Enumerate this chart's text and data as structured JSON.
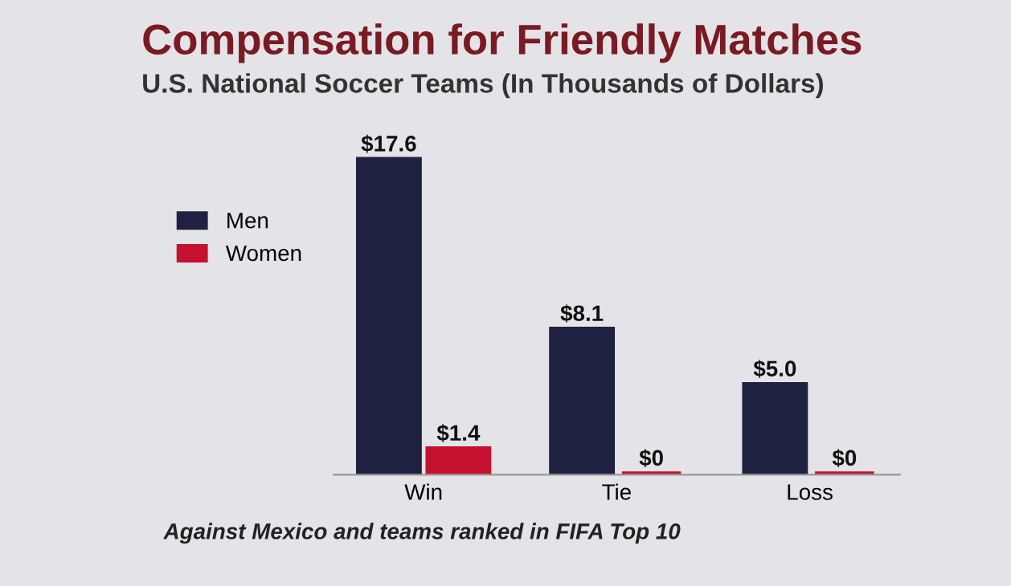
{
  "chart_data": {
    "type": "bar",
    "title": "Compensation for Friendly Matches",
    "subtitle": "U.S. National Soccer Teams (In Thousands of Dollars)",
    "categories": [
      "Win",
      "Tie",
      "Loss"
    ],
    "series": [
      {
        "name": "Men",
        "color": "#1e2140",
        "values": [
          17.6,
          8.1,
          5.0
        ],
        "value_labels": [
          "$17.6",
          "$8.1",
          "$5.0"
        ]
      },
      {
        "name": "Women",
        "color": "#c41230",
        "values": [
          1.4,
          0,
          0
        ],
        "value_labels": [
          "$1.4",
          "$0",
          "$0"
        ]
      }
    ],
    "legend": "left",
    "annotations": [
      "Against Mexico and teams ranked in FIFA Top 10"
    ]
  }
}
